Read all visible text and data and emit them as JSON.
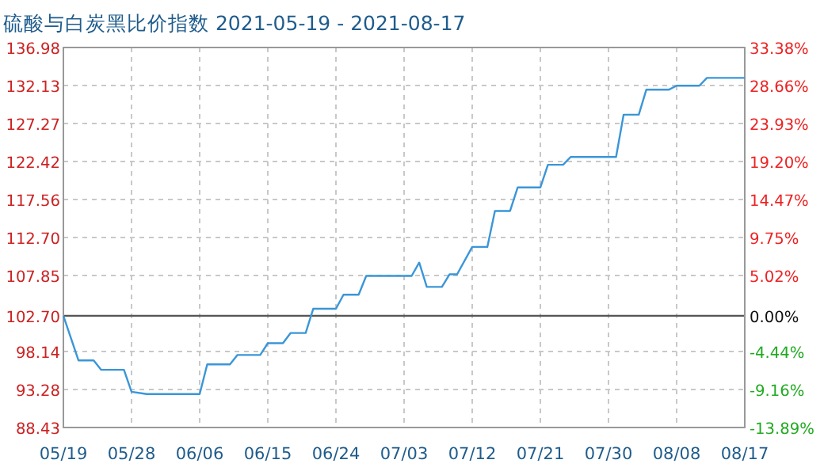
{
  "chart_data": {
    "type": "line",
    "title": "硫酸与白炭黑比价指数 2021-05-19 - 2021-08-17",
    "series": [
      {
        "color": "#3a96d8",
        "x": [
          "2021-05-19",
          "2021-05-21",
          "2021-05-23",
          "2021-05-24",
          "2021-05-27",
          "2021-05-28",
          "2021-05-30",
          "2021-06-06",
          "2021-06-07",
          "2021-06-10",
          "2021-06-11",
          "2021-06-14",
          "2021-06-15",
          "2021-06-17",
          "2021-06-18",
          "2021-06-20",
          "2021-06-21",
          "2021-06-24",
          "2021-06-25",
          "2021-06-27",
          "2021-06-28",
          "2021-07-04",
          "2021-07-05",
          "2021-07-06",
          "2021-07-08",
          "2021-07-09",
          "2021-07-10",
          "2021-07-12",
          "2021-07-14",
          "2021-07-15",
          "2021-07-17",
          "2021-07-18",
          "2021-07-21",
          "2021-07-22",
          "2021-07-24",
          "2021-07-25",
          "2021-07-31",
          "2021-08-01",
          "2021-08-03",
          "2021-08-04",
          "2021-08-07",
          "2021-08-08",
          "2021-08-11",
          "2021-08-12",
          "2021-08-17"
        ],
        "values": [
          102.7,
          97.0,
          97.0,
          95.8,
          95.8,
          93.0,
          92.7,
          92.7,
          96.5,
          96.5,
          97.7,
          97.7,
          99.2,
          99.2,
          100.5,
          100.5,
          103.6,
          103.6,
          105.4,
          105.4,
          107.8,
          107.8,
          109.5,
          106.4,
          106.4,
          108.0,
          108.0,
          111.5,
          111.5,
          116.1,
          116.1,
          119.1,
          119.1,
          122.0,
          122.0,
          123.0,
          123.0,
          128.4,
          128.4,
          131.6,
          131.6,
          132.1,
          132.1,
          133.1,
          133.1
        ]
      }
    ],
    "xlim": [
      "2021-05-19",
      "2021-08-17"
    ],
    "xticks": [
      {
        "value": "2021-05-19",
        "label": "05/19"
      },
      {
        "value": "2021-05-28",
        "label": "05/28"
      },
      {
        "value": "2021-06-06",
        "label": "06/06"
      },
      {
        "value": "2021-06-15",
        "label": "06/15"
      },
      {
        "value": "2021-06-24",
        "label": "06/24"
      },
      {
        "value": "2021-07-03",
        "label": "07/03"
      },
      {
        "value": "2021-07-12",
        "label": "07/12"
      },
      {
        "value": "2021-07-21",
        "label": "07/21"
      },
      {
        "value": "2021-07-30",
        "label": "07/30"
      },
      {
        "value": "2021-08-08",
        "label": "08/08"
      },
      {
        "value": "2021-08-17",
        "label": "08/17"
      }
    ],
    "ylim": [
      88.43,
      136.98
    ],
    "yticks": [
      88.43,
      93.28,
      98.14,
      {
        "value": 102.7,
        "label": "102.70"
      },
      107.85,
      {
        "value": 112.7,
        "label": "112.70"
      },
      117.56,
      122.42,
      127.27,
      132.13,
      136.98
    ],
    "y2lim": [
      -13.89,
      33.38
    ],
    "y2ticks": [
      {
        "value": -13.89,
        "label": "-13.89%"
      },
      {
        "value": -9.16,
        "label": "-9.16%"
      },
      {
        "value": -4.44,
        "label": "-4.44%"
      },
      {
        "value": 0,
        "label": "0.00%"
      },
      {
        "value": 5.02,
        "label": "5.02%"
      },
      {
        "value": 9.75,
        "label": "9.75%"
      },
      {
        "value": 14.47,
        "label": "14.47%"
      },
      {
        "value": 19.2,
        "label": "19.20%"
      },
      {
        "value": 23.93,
        "label": "23.93%"
      },
      {
        "value": 28.66,
        "label": "28.66%"
      },
      {
        "value": 33.38,
        "label": "33.38%"
      }
    ],
    "ref_lines": [
      {
        "axis": "y",
        "value": 102.7,
        "color": "#555555"
      }
    ],
    "grid": true,
    "marker": "none",
    "line_style": "solid"
  }
}
